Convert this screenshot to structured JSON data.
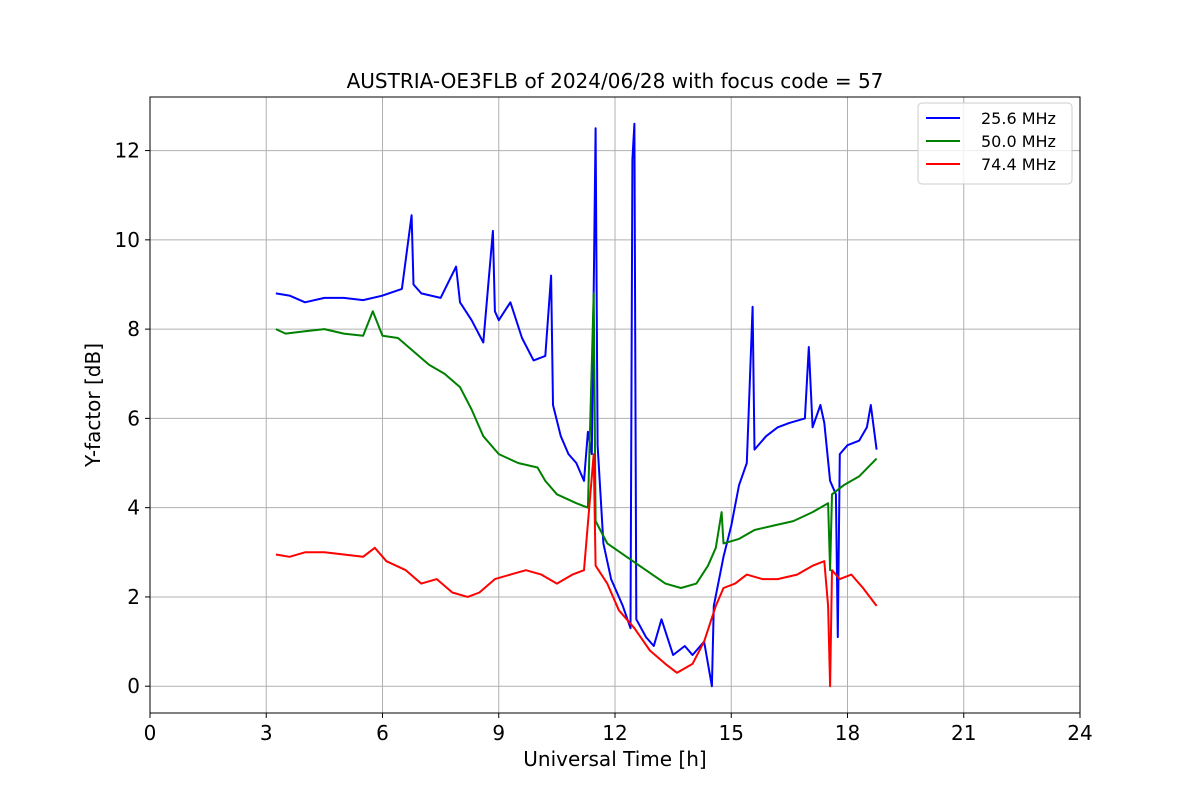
{
  "chart_data": {
    "type": "line",
    "title": "AUSTRIA-OE3FLB of 2024/06/28 with focus code = 57",
    "xlabel": "Universal Time [h]",
    "ylabel": "Y-factor [dB]",
    "xlim": [
      0,
      24
    ],
    "ylim": [
      -0.6,
      13.2
    ],
    "xticks": [
      0,
      3,
      6,
      9,
      12,
      15,
      18,
      21,
      24
    ],
    "yticks": [
      0,
      2,
      4,
      6,
      8,
      10,
      12
    ],
    "grid": true,
    "legend_position": "top-right",
    "series": [
      {
        "name": "25.6 MHz",
        "color": "#0000ff",
        "points": [
          [
            3.25,
            8.8
          ],
          [
            3.6,
            8.75
          ],
          [
            4.0,
            8.6
          ],
          [
            4.5,
            8.7
          ],
          [
            5.0,
            8.7
          ],
          [
            5.5,
            8.65
          ],
          [
            6.0,
            8.75
          ],
          [
            6.5,
            8.9
          ],
          [
            6.75,
            10.55
          ],
          [
            6.8,
            9.0
          ],
          [
            7.0,
            8.8
          ],
          [
            7.5,
            8.7
          ],
          [
            7.9,
            9.4
          ],
          [
            8.0,
            8.6
          ],
          [
            8.3,
            8.2
          ],
          [
            8.6,
            7.7
          ],
          [
            8.85,
            10.2
          ],
          [
            8.9,
            8.4
          ],
          [
            9.0,
            8.2
          ],
          [
            9.3,
            8.6
          ],
          [
            9.6,
            7.8
          ],
          [
            9.9,
            7.3
          ],
          [
            10.2,
            7.4
          ],
          [
            10.35,
            9.2
          ],
          [
            10.4,
            6.3
          ],
          [
            10.6,
            5.6
          ],
          [
            10.8,
            5.2
          ],
          [
            11.0,
            5.0
          ],
          [
            11.2,
            4.6
          ],
          [
            11.3,
            5.7
          ],
          [
            11.4,
            5.2
          ],
          [
            11.5,
            12.5
          ],
          [
            11.55,
            5.4
          ],
          [
            11.7,
            3.2
          ],
          [
            11.9,
            2.4
          ],
          [
            12.2,
            1.8
          ],
          [
            12.4,
            1.3
          ],
          [
            12.45,
            11.8
          ],
          [
            12.5,
            12.6
          ],
          [
            12.55,
            1.5
          ],
          [
            12.8,
            1.1
          ],
          [
            13.0,
            0.9
          ],
          [
            13.2,
            1.5
          ],
          [
            13.5,
            0.7
          ],
          [
            13.8,
            0.9
          ],
          [
            14.0,
            0.7
          ],
          [
            14.3,
            1.0
          ],
          [
            14.5,
            0.0
          ],
          [
            14.55,
            1.8
          ],
          [
            14.8,
            2.9
          ],
          [
            15.0,
            3.6
          ],
          [
            15.2,
            4.5
          ],
          [
            15.4,
            5.0
          ],
          [
            15.55,
            8.5
          ],
          [
            15.6,
            5.3
          ],
          [
            15.9,
            5.6
          ],
          [
            16.2,
            5.8
          ],
          [
            16.5,
            5.9
          ],
          [
            16.9,
            6.0
          ],
          [
            17.0,
            7.6
          ],
          [
            17.1,
            5.8
          ],
          [
            17.3,
            6.3
          ],
          [
            17.4,
            5.9
          ],
          [
            17.55,
            4.6
          ],
          [
            17.7,
            4.3
          ],
          [
            17.75,
            1.1
          ],
          [
            17.8,
            5.2
          ],
          [
            18.0,
            5.4
          ],
          [
            18.3,
            5.5
          ],
          [
            18.5,
            5.8
          ],
          [
            18.6,
            6.3
          ],
          [
            18.75,
            5.3
          ]
        ]
      },
      {
        "name": "50.0 MHz",
        "color": "#008000",
        "points": [
          [
            3.25,
            8.0
          ],
          [
            3.5,
            7.9
          ],
          [
            4.0,
            7.95
          ],
          [
            4.5,
            8.0
          ],
          [
            5.0,
            7.9
          ],
          [
            5.5,
            7.85
          ],
          [
            5.75,
            8.4
          ],
          [
            6.0,
            7.85
          ],
          [
            6.4,
            7.8
          ],
          [
            6.8,
            7.5
          ],
          [
            7.2,
            7.2
          ],
          [
            7.6,
            7.0
          ],
          [
            8.0,
            6.7
          ],
          [
            8.3,
            6.2
          ],
          [
            8.6,
            5.6
          ],
          [
            9.0,
            5.2
          ],
          [
            9.5,
            5.0
          ],
          [
            10.0,
            4.9
          ],
          [
            10.2,
            4.6
          ],
          [
            10.5,
            4.3
          ],
          [
            11.0,
            4.1
          ],
          [
            11.3,
            4.0
          ],
          [
            11.45,
            8.8
          ],
          [
            11.5,
            3.7
          ],
          [
            11.8,
            3.2
          ],
          [
            12.3,
            2.9
          ],
          [
            12.8,
            2.6
          ],
          [
            13.3,
            2.3
          ],
          [
            13.7,
            2.2
          ],
          [
            14.1,
            2.3
          ],
          [
            14.4,
            2.7
          ],
          [
            14.6,
            3.1
          ],
          [
            14.75,
            3.9
          ],
          [
            14.8,
            3.2
          ],
          [
            15.2,
            3.3
          ],
          [
            15.6,
            3.5
          ],
          [
            16.1,
            3.6
          ],
          [
            16.6,
            3.7
          ],
          [
            17.1,
            3.9
          ],
          [
            17.5,
            4.1
          ],
          [
            17.55,
            2.6
          ],
          [
            17.6,
            4.3
          ],
          [
            17.9,
            4.5
          ],
          [
            18.3,
            4.7
          ],
          [
            18.75,
            5.1
          ]
        ]
      },
      {
        "name": "74.4 MHz",
        "color": "#ff0000",
        "points": [
          [
            3.25,
            2.95
          ],
          [
            3.6,
            2.9
          ],
          [
            4.0,
            3.0
          ],
          [
            4.5,
            3.0
          ],
          [
            5.0,
            2.95
          ],
          [
            5.5,
            2.9
          ],
          [
            5.8,
            3.1
          ],
          [
            6.1,
            2.8
          ],
          [
            6.6,
            2.6
          ],
          [
            7.0,
            2.3
          ],
          [
            7.4,
            2.4
          ],
          [
            7.8,
            2.1
          ],
          [
            8.2,
            2.0
          ],
          [
            8.5,
            2.1
          ],
          [
            8.9,
            2.4
          ],
          [
            9.3,
            2.5
          ],
          [
            9.7,
            2.6
          ],
          [
            10.1,
            2.5
          ],
          [
            10.5,
            2.3
          ],
          [
            10.9,
            2.5
          ],
          [
            11.2,
            2.6
          ],
          [
            11.45,
            5.2
          ],
          [
            11.5,
            2.7
          ],
          [
            11.8,
            2.3
          ],
          [
            12.1,
            1.7
          ],
          [
            12.5,
            1.3
          ],
          [
            12.9,
            0.8
          ],
          [
            13.3,
            0.5
          ],
          [
            13.6,
            0.3
          ],
          [
            14.0,
            0.5
          ],
          [
            14.3,
            1.0
          ],
          [
            14.6,
            1.8
          ],
          [
            14.8,
            2.2
          ],
          [
            15.1,
            2.3
          ],
          [
            15.4,
            2.5
          ],
          [
            15.8,
            2.4
          ],
          [
            16.2,
            2.4
          ],
          [
            16.7,
            2.5
          ],
          [
            17.1,
            2.7
          ],
          [
            17.4,
            2.8
          ],
          [
            17.5,
            1.8
          ],
          [
            17.55,
            0.0
          ],
          [
            17.6,
            2.6
          ],
          [
            17.8,
            2.4
          ],
          [
            18.1,
            2.5
          ],
          [
            18.4,
            2.2
          ],
          [
            18.75,
            1.8
          ]
        ]
      }
    ]
  }
}
